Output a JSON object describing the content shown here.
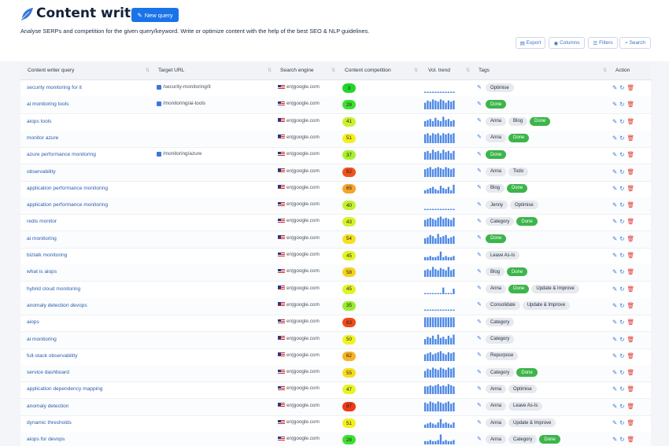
{
  "header": {
    "title": "Content writer",
    "new_query_label": "New query",
    "subtitle": "Analyse SERPs and competition for the given query/keyword. Write or optimize content with the help of the best SEO & NLP guidelines."
  },
  "toolbar": {
    "export": "Export",
    "columns": "Columns",
    "filters": "Filters",
    "search": "Search"
  },
  "columns": [
    "Content writer query",
    "Target URL",
    "Search engine",
    "Content competition",
    "Vol. trend",
    "Tags",
    "Action"
  ],
  "colors": {
    "accent": "#1a73e8",
    "done": "#3cb54a",
    "delete": "#e0322b"
  },
  "rows": [
    {
      "query": "security monitoring for it",
      "url": "/security-monitoring/it",
      "engine": "en|google.com",
      "score": "3",
      "color": "#22d629",
      "trend": [
        1,
        1,
        1,
        1,
        1,
        1,
        1,
        1,
        1,
        1,
        1,
        1
      ],
      "tags": [
        "Optimise"
      ]
    },
    {
      "query": "ai monitoring tools",
      "url": "/monitoring/ai-tools",
      "engine": "en|google.com",
      "score": "28",
      "color": "#3fe030",
      "trend": [
        6,
        8,
        7,
        9,
        8,
        7,
        9,
        8,
        6,
        8,
        7,
        8
      ],
      "tags": [
        "Done"
      ]
    },
    {
      "query": "aiops tools",
      "url": "",
      "engine": "en|google.com",
      "score": "41",
      "color": "#c9f22d",
      "trend": [
        5,
        6,
        7,
        5,
        8,
        6,
        5,
        9,
        6,
        7,
        5,
        6
      ],
      "tags": [
        "Anna",
        "Blog",
        "Done"
      ]
    },
    {
      "query": "monitor azure",
      "url": "",
      "engine": "en|google.com",
      "score": "51",
      "color": "#f3ee20",
      "trend": [
        8,
        9,
        7,
        9,
        8,
        9,
        7,
        9,
        8,
        9,
        8,
        9
      ],
      "tags": [
        "Anna",
        "Done"
      ]
    },
    {
      "query": "azure performance monitoring",
      "url": "/monitoring/azure",
      "engine": "en|google.com",
      "score": "37",
      "color": "#a8ef2e",
      "trend": [
        7,
        8,
        6,
        9,
        7,
        8,
        6,
        9,
        7,
        8,
        6,
        8
      ],
      "tags": [
        "Done"
      ]
    },
    {
      "query": "observability",
      "url": "",
      "engine": "en|google.com",
      "score": "82",
      "color": "#f0521b",
      "trend": [
        7,
        8,
        9,
        7,
        8,
        9,
        8,
        7,
        9,
        8,
        7,
        8
      ],
      "tags": [
        "Anna",
        "Todo"
      ]
    },
    {
      "query": "application performance monitoring",
      "url": "",
      "engine": "en|google.com",
      "score": "65",
      "color": "#f6a32a",
      "trend": [
        3,
        4,
        5,
        6,
        4,
        3,
        7,
        5,
        4,
        6,
        3,
        8
      ],
      "tags": [
        "Blog",
        "Done"
      ]
    },
    {
      "query": "application performance monitoring",
      "url": "",
      "engine": "en|google.com",
      "score": "40",
      "color": "#c4f02e",
      "trend": [
        1,
        1,
        1,
        1,
        1,
        1,
        1,
        1,
        1,
        1,
        1,
        1
      ],
      "tags": [
        "Jenny",
        "Optimise"
      ]
    },
    {
      "query": "redis monitor",
      "url": "",
      "engine": "en|google.com",
      "score": "43",
      "color": "#d6f228",
      "trend": [
        6,
        7,
        8,
        7,
        6,
        8,
        9,
        7,
        8,
        7,
        6,
        8
      ],
      "tags": [
        "Category",
        "Done"
      ]
    },
    {
      "query": "ai monitoring",
      "url": "",
      "engine": "en|google.com",
      "score": "54",
      "color": "#f6e01e",
      "trend": [
        5,
        6,
        8,
        7,
        5,
        9,
        6,
        7,
        8,
        5,
        6,
        7
      ],
      "tags": [
        "Done"
      ]
    },
    {
      "query": "biztalk monitoring",
      "url": "",
      "engine": "en|google.com",
      "score": "45",
      "color": "#def426",
      "trend": [
        3,
        3,
        4,
        3,
        3,
        4,
        8,
        3,
        4,
        3,
        3,
        4
      ],
      "tags": [
        "Leave As-Is"
      ]
    },
    {
      "query": "what is aiops",
      "url": "",
      "engine": "en|google.com",
      "score": "58",
      "color": "#f6d11f",
      "trend": [
        6,
        7,
        6,
        9,
        7,
        6,
        8,
        7,
        6,
        9,
        6,
        7
      ],
      "tags": [
        "Blog",
        "Done"
      ]
    },
    {
      "query": "hybrid cloud monitoring",
      "url": "",
      "engine": "en|google.com",
      "score": "45",
      "color": "#def426",
      "trend": [
        1,
        1,
        1,
        1,
        1,
        1,
        1,
        6,
        1,
        1,
        1,
        5
      ],
      "tags": [
        "Anna",
        "Done",
        "Update & Improve"
      ]
    },
    {
      "query": "anomaly detection devops",
      "url": "",
      "engine": "en|google.com",
      "score": "35",
      "color": "#98ec30",
      "trend": [
        1,
        1,
        1,
        1,
        1,
        1,
        1,
        1,
        1,
        1,
        1,
        1
      ],
      "tags": [
        "Consolidate",
        "Update & Improve"
      ]
    },
    {
      "query": "aiops",
      "url": "",
      "engine": "en|google.com",
      "score": "83",
      "color": "#f04a1a",
      "trend": [
        9,
        9,
        9,
        9,
        9,
        9,
        9,
        9,
        9,
        9,
        9,
        9
      ],
      "tags": [
        "Category"
      ]
    },
    {
      "query": "ai monitoring",
      "url": "",
      "engine": "en|google.com",
      "score": "50",
      "color": "#eef422",
      "trend": [
        5,
        7,
        6,
        8,
        5,
        9,
        6,
        7,
        5,
        8,
        6,
        9
      ],
      "tags": [
        "Category"
      ]
    },
    {
      "query": "full-stack observability",
      "url": "",
      "engine": "en|google.com",
      "score": "62",
      "color": "#f6b325",
      "trend": [
        6,
        7,
        8,
        6,
        7,
        8,
        9,
        7,
        6,
        8,
        7,
        8
      ],
      "tags": [
        "Repurpose"
      ]
    },
    {
      "query": "service dashboard",
      "url": "",
      "engine": "en|google.com",
      "score": "55",
      "color": "#f6dc1f",
      "trend": [
        6,
        8,
        7,
        9,
        8,
        7,
        9,
        8,
        7,
        9,
        8,
        9
      ],
      "tags": [
        "Category",
        "Done"
      ]
    },
    {
      "query": "application dependency mapping",
      "url": "",
      "engine": "en|google.com",
      "score": "47",
      "color": "#e5f424",
      "trend": [
        7,
        7,
        8,
        7,
        8,
        9,
        7,
        8,
        7,
        9,
        8,
        7
      ],
      "tags": [
        "Anna",
        "Optimise"
      ]
    },
    {
      "query": "anomaly detection",
      "url": "",
      "engine": "en|google.com",
      "score": "87",
      "color": "#ee3a17",
      "trend": [
        8,
        7,
        9,
        8,
        7,
        9,
        8,
        7,
        8,
        9,
        7,
        8
      ],
      "tags": [
        "Anna",
        "Leave As-Is"
      ]
    },
    {
      "query": "dynamic thresholds",
      "url": "",
      "engine": "en|google.com",
      "score": "51",
      "color": "#f3ee20",
      "trend": [
        3,
        4,
        5,
        4,
        3,
        5,
        8,
        4,
        5,
        4,
        3,
        5
      ],
      "tags": [
        "Anna",
        "Update & Improve"
      ]
    },
    {
      "query": "aiops for devops",
      "url": "",
      "engine": "en|google.com",
      "score": "28",
      "color": "#3fe030",
      "trend": [
        3,
        3,
        4,
        3,
        3,
        4,
        9,
        3,
        4,
        3,
        3,
        4
      ],
      "tags": [
        "Anna",
        "Category",
        "Done"
      ]
    }
  ]
}
